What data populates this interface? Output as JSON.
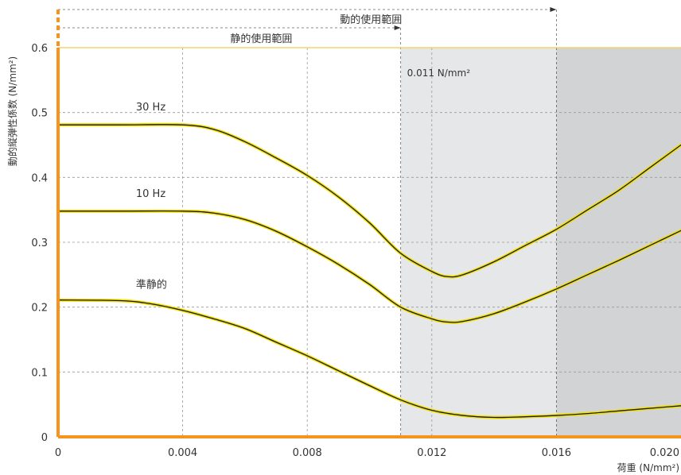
{
  "chart_data": {
    "type": "line",
    "title": "",
    "xlabel": "荷重 (N/mm²)",
    "ylabel": "動的縦弾性係数 (N/mm²)",
    "xlim": [
      0,
      0.02
    ],
    "ylim": [
      0,
      0.6
    ],
    "x_ticks": [
      "0",
      "0.004",
      "0.008",
      "0.012",
      "0.016",
      "0.020"
    ],
    "y_ticks": [
      "0",
      "0.1",
      "0.2",
      "0.3",
      "0.4",
      "0.5",
      "0.6"
    ],
    "grid": true,
    "series": [
      {
        "name": "30 Hz",
        "x": [
          0,
          0.002,
          0.004,
          0.005,
          0.006,
          0.007,
          0.008,
          0.009,
          0.01,
          0.011,
          0.012,
          0.0125,
          0.013,
          0.014,
          0.015,
          0.016,
          0.017,
          0.018,
          0.019,
          0.02
        ],
        "y": [
          0.481,
          0.481,
          0.481,
          0.474,
          0.455,
          0.43,
          0.403,
          0.37,
          0.33,
          0.283,
          0.255,
          0.247,
          0.25,
          0.27,
          0.295,
          0.32,
          0.35,
          0.38,
          0.415,
          0.45
        ]
      },
      {
        "name": "10 Hz",
        "x": [
          0,
          0.002,
          0.004,
          0.005,
          0.006,
          0.007,
          0.008,
          0.009,
          0.01,
          0.011,
          0.012,
          0.0125,
          0.013,
          0.014,
          0.015,
          0.016,
          0.017,
          0.018,
          0.019,
          0.02
        ],
        "y": [
          0.348,
          0.348,
          0.348,
          0.345,
          0.335,
          0.317,
          0.293,
          0.266,
          0.235,
          0.2,
          0.182,
          0.177,
          0.178,
          0.19,
          0.208,
          0.228,
          0.25,
          0.272,
          0.295,
          0.318
        ]
      },
      {
        "name": "準静的",
        "x": [
          0,
          0.002,
          0.003,
          0.004,
          0.005,
          0.006,
          0.007,
          0.008,
          0.009,
          0.01,
          0.011,
          0.012,
          0.013,
          0.014,
          0.015,
          0.016,
          0.017,
          0.018,
          0.019,
          0.02
        ],
        "y": [
          0.211,
          0.21,
          0.205,
          0.195,
          0.182,
          0.167,
          0.146,
          0.125,
          0.102,
          0.079,
          0.057,
          0.041,
          0.033,
          0.03,
          0.031,
          0.033,
          0.036,
          0.04,
          0.044,
          0.048
        ]
      }
    ],
    "annotations": {
      "static_range_label": "静的使用範囲",
      "static_range_end": 0.011,
      "dynamic_range_label": "動的使用範囲",
      "dynamic_range_end": 0.016,
      "threshold_label": "0.011 N/mm²"
    },
    "colors": {
      "axis": "#f7941d",
      "curve": "#1a1a1a",
      "curve_glow": "#f2e000",
      "static_shade": "#e6e7e8",
      "dynamic_shade": "#d1d3d4",
      "top_line": "#f7d36b"
    }
  }
}
